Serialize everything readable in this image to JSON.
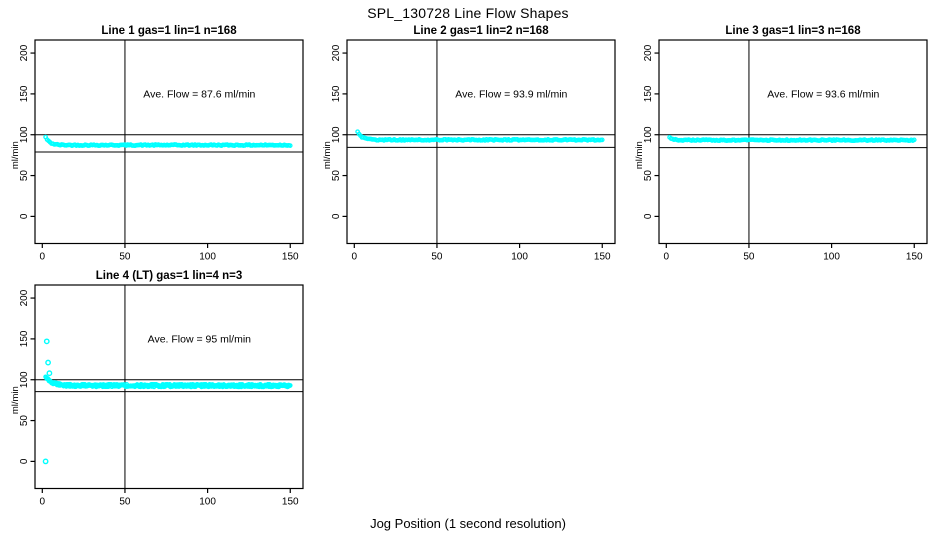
{
  "page": {
    "title": "SPL_130728  Line Flow Shapes",
    "xlabel": "Jog Position (1 second resolution)"
  },
  "colors": {
    "points": "#00ffff",
    "axis": "#000000",
    "background": "#ffffff"
  },
  "chart_data": [
    {
      "type": "scatter",
      "title": "Line 1 gas=1 lin=1 n=168",
      "n": 168,
      "avg_flow": 87.6,
      "annotation": "Ave. Flow =  87.6  ml/min",
      "annotation_pos": {
        "x": 95,
        "y": 150
      },
      "ylabel": "ml/min",
      "x_ticks": [
        0,
        50,
        100,
        150
      ],
      "y_ticks": [
        0,
        50,
        100,
        150,
        200
      ],
      "xlim": [
        -4,
        157
      ],
      "ylim": [
        -33,
        216
      ],
      "ref_lines": {
        "h": [
          100,
          78.8
        ],
        "v": [
          50
        ]
      },
      "series": {
        "n_points": 168,
        "x_start": 2,
        "x_end": 150,
        "start": 97,
        "steady": 87.3,
        "tau": 2.5,
        "noise": 0.7
      },
      "outliers": []
    },
    {
      "type": "scatter",
      "title": "Line 2 gas=1 lin=2 n=168",
      "n": 168,
      "avg_flow": 93.9,
      "annotation": "Ave. Flow =  93.9  ml/min",
      "annotation_pos": {
        "x": 95,
        "y": 150
      },
      "ylabel": "ml/min",
      "x_ticks": [
        0,
        50,
        100,
        150
      ],
      "y_ticks": [
        0,
        50,
        100,
        150,
        200
      ],
      "xlim": [
        -4,
        157
      ],
      "ylim": [
        -33,
        216
      ],
      "ref_lines": {
        "h": [
          100,
          84.5
        ],
        "v": [
          50
        ]
      },
      "series": {
        "n_points": 168,
        "x_start": 2,
        "x_end": 150,
        "start": 104,
        "steady": 93.7,
        "tau": 2.5,
        "noise": 0.7
      },
      "outliers": []
    },
    {
      "type": "scatter",
      "title": "Line 3 gas=1 lin=3 n=168",
      "n": 168,
      "avg_flow": 93.6,
      "annotation": "Ave. Flow =  93.6  ml/min",
      "annotation_pos": {
        "x": 95,
        "y": 150
      },
      "ylabel": "ml/min",
      "x_ticks": [
        0,
        50,
        100,
        150
      ],
      "y_ticks": [
        0,
        50,
        100,
        150,
        200
      ],
      "xlim": [
        -4,
        157
      ],
      "ylim": [
        -33,
        216
      ],
      "ref_lines": {
        "h": [
          100,
          84.2
        ],
        "v": [
          50
        ]
      },
      "series": {
        "n_points": 168,
        "x_start": 2,
        "x_end": 150,
        "start": 97,
        "steady": 93.4,
        "tau": 2.0,
        "noise": 0.7
      },
      "outliers": []
    },
    {
      "type": "scatter",
      "title": "Line 4 (LT) gas=1 lin=4 n=3",
      "n": 3,
      "avg_flow": 95,
      "annotation": "Ave. Flow =  95  ml/min",
      "annotation_pos": {
        "x": 95,
        "y": 150
      },
      "ylabel": "ml/min",
      "x_ticks": [
        0,
        50,
        100,
        150
      ],
      "y_ticks": [
        0,
        50,
        100,
        150,
        200
      ],
      "xlim": [
        -4,
        157
      ],
      "ylim": [
        -33,
        216
      ],
      "ref_lines": {
        "h": [
          100,
          85.5
        ],
        "v": [
          50
        ]
      },
      "series": {
        "n_points": 450,
        "x_start": 2,
        "x_end": 150,
        "start": 104,
        "steady": 92.8,
        "tau": 4.0,
        "noise": 1.6
      },
      "outliers": [
        {
          "x": 2.0,
          "y": 0
        },
        {
          "x": 2.7,
          "y": 147
        },
        {
          "x": 3.5,
          "y": 121
        },
        {
          "x": 4.3,
          "y": 108
        }
      ]
    }
  ]
}
